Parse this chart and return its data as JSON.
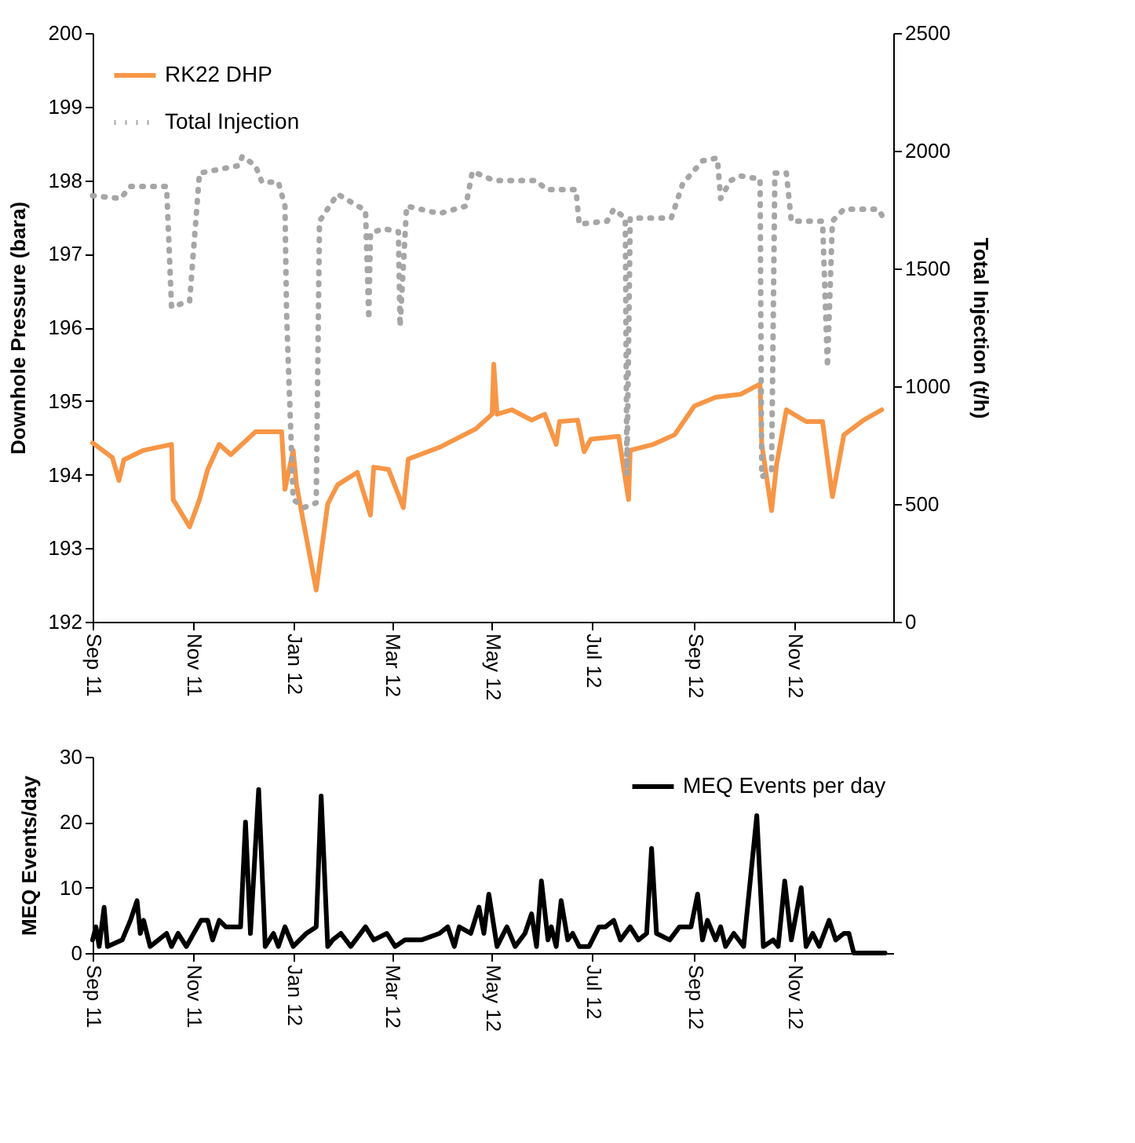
{
  "chart_data": [
    {
      "type": "line",
      "ylabel": "Downhole Pressure (bara)",
      "y2label": "Total Injection (t/h)",
      "xlim": [
        "2011-09-01",
        "2012-12-31"
      ],
      "xticks": [
        {
          "value": "2011-09-01",
          "label": "Sep 11"
        },
        {
          "value": "2011-11-01",
          "label": "Nov 11"
        },
        {
          "value": "2012-01-01",
          "label": "Jan 12"
        },
        {
          "value": "2012-03-01",
          "label": "Mar 12"
        },
        {
          "value": "2012-05-01",
          "label": "May 12"
        },
        {
          "value": "2012-07-01",
          "label": "Jul 12"
        },
        {
          "value": "2012-09-01",
          "label": "Sep 12"
        },
        {
          "value": "2012-11-01",
          "label": "Nov 12"
        }
      ],
      "ylim": [
        192,
        200
      ],
      "yticks": [
        192,
        193,
        194,
        195,
        196,
        197,
        198,
        199,
        200
      ],
      "y2lim": [
        0,
        2500
      ],
      "y2ticks": [
        0,
        500,
        1000,
        1500,
        2000,
        2500
      ],
      "legend": "top left",
      "series": [
        {
          "name": "RK22 DHP",
          "color": "#f79646",
          "line_style": "solid",
          "x": [
            "2011-09-01",
            "2011-09-13",
            "2011-09-17",
            "2011-09-20",
            "2011-10-02",
            "2011-10-19",
            "2011-10-20",
            "2011-10-30",
            "2011-11-05",
            "2011-11-10",
            "2011-11-17",
            "2011-11-24",
            "2011-12-09",
            "2011-12-25",
            "2011-12-27",
            "2012-01-01",
            "2012-01-03",
            "2012-01-15",
            "2012-01-22",
            "2012-01-28",
            "2012-02-09",
            "2012-02-17",
            "2012-02-19",
            "2012-02-28",
            "2012-03-08",
            "2012-03-11",
            "2012-03-30",
            "2012-04-21",
            "2012-05-01",
            "2012-05-02",
            "2012-05-04",
            "2012-05-13",
            "2012-05-25",
            "2012-06-02",
            "2012-06-09",
            "2012-06-11",
            "2012-06-22",
            "2012-06-26",
            "2012-06-30",
            "2012-07-17",
            "2012-07-23",
            "2012-07-24",
            "2012-08-07",
            "2012-08-20",
            "2012-09-01",
            "2012-09-14",
            "2012-09-29",
            "2012-10-11",
            "2012-10-12",
            "2012-10-18",
            "2012-10-21",
            "2012-10-27",
            "2012-11-08",
            "2012-11-18",
            "2012-11-24",
            "2012-12-01",
            "2012-12-13",
            "2012-12-24"
          ],
          "values": [
            194.43,
            194.23,
            193.92,
            194.2,
            194.33,
            194.41,
            193.66,
            193.29,
            193.66,
            194.07,
            194.41,
            194.27,
            194.58,
            194.58,
            193.8,
            194.33,
            193.86,
            192.43,
            193.6,
            193.86,
            194.03,
            193.45,
            194.1,
            194.07,
            193.55,
            194.21,
            194.37,
            194.62,
            194.82,
            195.5,
            194.82,
            194.88,
            194.74,
            194.82,
            194.41,
            194.72,
            194.74,
            194.31,
            194.48,
            194.52,
            193.66,
            194.33,
            194.41,
            194.54,
            194.93,
            195.05,
            195.09,
            195.23,
            194.41,
            193.51,
            194.13,
            194.88,
            194.72,
            194.72,
            193.7,
            194.54,
            194.74,
            194.88
          ]
        },
        {
          "name": "Total Injection",
          "color": "#a6a6a6",
          "line_style": "dotted",
          "axis": "y2",
          "x": [
            "2011-09-01",
            "2011-09-18",
            "2011-09-24",
            "2011-10-16",
            "2011-10-19",
            "2011-10-30",
            "2011-11-05",
            "2011-11-29",
            "2011-12-01",
            "2011-12-09",
            "2011-12-13",
            "2011-12-23",
            "2011-12-27",
            "2011-12-28",
            "2012-01-01",
            "2012-01-08",
            "2012-01-15",
            "2012-01-17",
            "2012-01-28",
            "2012-02-14",
            "2012-02-16",
            "2012-02-17",
            "2012-02-25",
            "2012-03-05",
            "2012-03-06",
            "2012-03-10",
            "2012-03-30",
            "2012-04-15",
            "2012-04-19",
            "2012-04-30",
            "2012-05-03",
            "2012-05-28",
            "2012-06-03",
            "2012-06-21",
            "2012-06-23",
            "2012-07-10",
            "2012-07-14",
            "2012-07-21",
            "2012-07-22",
            "2012-07-24",
            "2012-08-18",
            "2012-08-25",
            "2012-09-06",
            "2012-09-15",
            "2012-09-17",
            "2012-09-23",
            "2012-09-29",
            "2012-10-11",
            "2012-10-12",
            "2012-10-18",
            "2012-10-20",
            "2012-10-27",
            "2012-10-30",
            "2012-11-18",
            "2012-11-21",
            "2012-11-24",
            "2012-12-01",
            "2012-12-22",
            "2012-12-25"
          ],
          "values": [
            1809,
            1797,
            1848,
            1848,
            1336,
            1362,
            1905,
            1937,
            1976,
            1937,
            1867,
            1867,
            1765,
            1304,
            518,
            486,
            505,
            1701,
            1816,
            1746,
            1285,
            1650,
            1669,
            1656,
            1253,
            1765,
            1733,
            1765,
            1912,
            1880,
            1873,
            1873,
            1835,
            1835,
            1688,
            1701,
            1752,
            1714,
            627,
            1714,
            1714,
            1861,
            1957,
            1969,
            1797,
            1873,
            1893,
            1880,
            614,
            646,
            1905,
            1905,
            1701,
            1701,
            1081,
            1701,
            1752,
            1752,
            1714
          ]
        }
      ]
    },
    {
      "type": "line",
      "ylabel": "MEQ Events/day",
      "xlim": [
        "2011-09-01",
        "2012-12-31"
      ],
      "xticks": [
        {
          "value": "2011-09-01",
          "label": "Sep 11"
        },
        {
          "value": "2011-11-01",
          "label": "Nov 11"
        },
        {
          "value": "2012-01-01",
          "label": "Jan 12"
        },
        {
          "value": "2012-03-01",
          "label": "Mar 12"
        },
        {
          "value": "2012-05-01",
          "label": "May 12"
        },
        {
          "value": "2012-07-01",
          "label": "Jul 12"
        },
        {
          "value": "2012-09-01",
          "label": "Sep 12"
        },
        {
          "value": "2012-11-01",
          "label": "Nov 12"
        }
      ],
      "ylim": [
        0,
        30
      ],
      "yticks": [
        0,
        10,
        20,
        30
      ],
      "legend": "top right",
      "series": [
        {
          "name": "MEQ Events per day",
          "color": "#000000",
          "line_style": "solid",
          "x": [
            "2011-09-01",
            "2011-09-03",
            "2011-09-05",
            "2011-09-08",
            "2011-09-10",
            "2011-09-19",
            "2011-09-24",
            "2011-09-28",
            "2011-09-30",
            "2011-10-02",
            "2011-10-06",
            "2011-10-11",
            "2011-10-16",
            "2011-10-19",
            "2011-10-23",
            "2011-10-28",
            "2011-11-06",
            "2011-11-10",
            "2011-11-13",
            "2011-11-17",
            "2011-11-21",
            "2011-11-26",
            "2011-11-30",
            "2011-12-03",
            "2011-12-06",
            "2011-12-11",
            "2011-12-15",
            "2011-12-20",
            "2011-12-23",
            "2011-12-27",
            "2012-01-01",
            "2012-01-09",
            "2012-01-15",
            "2012-01-18",
            "2012-01-22",
            "2012-01-25",
            "2012-01-30",
            "2012-02-05",
            "2012-02-14",
            "2012-02-19",
            "2012-02-27",
            "2012-03-03",
            "2012-03-09",
            "2012-03-19",
            "2012-03-30",
            "2012-04-04",
            "2012-04-08",
            "2012-04-11",
            "2012-04-18",
            "2012-04-23",
            "2012-04-26",
            "2012-04-29",
            "2012-05-04",
            "2012-05-10",
            "2012-05-15",
            "2012-05-21",
            "2012-05-25",
            "2012-05-28",
            "2012-05-31",
            "2012-06-04",
            "2012-06-06",
            "2012-06-09",
            "2012-06-12",
            "2012-06-16",
            "2012-06-19",
            "2012-06-23",
            "2012-06-29",
            "2012-07-05",
            "2012-07-09",
            "2012-07-14",
            "2012-07-18",
            "2012-07-24",
            "2012-07-29",
            "2012-08-03",
            "2012-08-06",
            "2012-08-09",
            "2012-08-17",
            "2012-08-23",
            "2012-08-30",
            "2012-09-03",
            "2012-09-06",
            "2012-09-09",
            "2012-09-14",
            "2012-09-17",
            "2012-09-20",
            "2012-09-25",
            "2012-10-01",
            "2012-10-09",
            "2012-10-13",
            "2012-10-19",
            "2012-10-22",
            "2012-10-26",
            "2012-10-30",
            "2012-11-05",
            "2012-11-08",
            "2012-11-12",
            "2012-11-16",
            "2012-11-22",
            "2012-11-26",
            "2012-12-01",
            "2012-12-04",
            "2012-12-07",
            "2012-12-18",
            "2012-12-26"
          ],
          "values": [
            2,
            4,
            1,
            7,
            1,
            2,
            5,
            8,
            3,
            5,
            1,
            2,
            3,
            1,
            3,
            1,
            5,
            5,
            2,
            5,
            4,
            4,
            4,
            20,
            3,
            25,
            1,
            3,
            1,
            4,
            1,
            3,
            4,
            24,
            1,
            2,
            3,
            1,
            4,
            2,
            3,
            1,
            2,
            2,
            3,
            4,
            1,
            4,
            3,
            7,
            3,
            9,
            1,
            4,
            1,
            3,
            6,
            1,
            11,
            2,
            4,
            1,
            8,
            2,
            3,
            1,
            1,
            4,
            4,
            5,
            2,
            4,
            2,
            3,
            16,
            3,
            2,
            4,
            4,
            9,
            2,
            5,
            2,
            4,
            1,
            3,
            1,
            21,
            1,
            2,
            1,
            11,
            2,
            10,
            1,
            3,
            1,
            5,
            2,
            3,
            3,
            0,
            0,
            0
          ]
        }
      ]
    }
  ]
}
